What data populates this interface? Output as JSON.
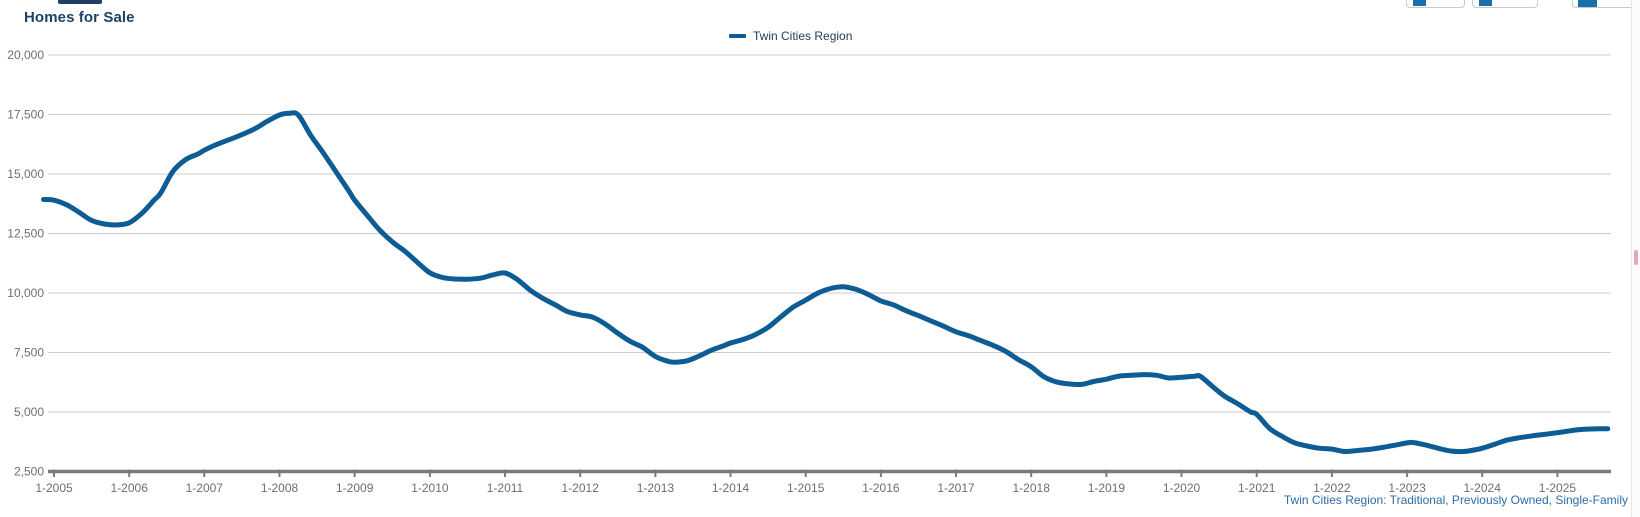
{
  "page": {
    "title": "Homes for Sale",
    "footer_note": "Twin Cities Region: Traditional, Previously Owned, Single-Family"
  },
  "legend": {
    "series_label": "Twin Cities Region"
  },
  "toolbar": {
    "buttons": [
      {
        "name": "toolbar-button-1",
        "icon": "chart-tool-icon"
      },
      {
        "name": "toolbar-button-2",
        "icon": "chart-tool-icon"
      },
      {
        "name": "toolbar-button-3",
        "icon": "chart-tool-icon-active"
      }
    ]
  },
  "colors": {
    "line": "#0d5c94",
    "title": "#1c4365",
    "axis_label": "#6e6e6e",
    "gridline": "#cccccc",
    "axis_line": "#7a7a7a",
    "footer": "#2e6da4"
  },
  "chart_data": {
    "type": "line",
    "title": "Homes for Sale",
    "xlabel": "",
    "ylabel": "",
    "grid": "horizontal",
    "legend_position": "top-center",
    "ylim": [
      2500,
      20000
    ],
    "y_ticks": [
      20000,
      17500,
      15000,
      12500,
      10000,
      7500,
      5000,
      2500
    ],
    "x_tick_labels": [
      "1-2005",
      "1-2006",
      "1-2007",
      "1-2008",
      "1-2009",
      "1-2010",
      "1-2011",
      "1-2012",
      "1-2013",
      "1-2014",
      "1-2015",
      "1-2016",
      "1-2017",
      "1-2018",
      "1-2019",
      "1-2020",
      "1-2021",
      "1-2022",
      "1-2023",
      "1-2024",
      "1-2025"
    ],
    "x_tick_years": [
      2005,
      2006,
      2007,
      2008,
      2009,
      2010,
      2011,
      2012,
      2013,
      2014,
      2015,
      2016,
      2017,
      2018,
      2019,
      2020,
      2021,
      2022,
      2023,
      2024,
      2025
    ],
    "series": [
      {
        "name": "Twin Cities Region",
        "color": "#0d5c94",
        "points": [
          [
            2004.86,
            13930
          ],
          [
            2005.0,
            13900
          ],
          [
            2005.17,
            13700
          ],
          [
            2005.33,
            13400
          ],
          [
            2005.5,
            13050
          ],
          [
            2005.67,
            12900
          ],
          [
            2005.83,
            12860
          ],
          [
            2006.0,
            12950
          ],
          [
            2006.17,
            13350
          ],
          [
            2006.33,
            13900
          ],
          [
            2006.42,
            14200
          ],
          [
            2006.58,
            15100
          ],
          [
            2006.75,
            15600
          ],
          [
            2006.92,
            15850
          ],
          [
            2007.0,
            16000
          ],
          [
            2007.17,
            16250
          ],
          [
            2007.42,
            16550
          ],
          [
            2007.67,
            16900
          ],
          [
            2007.83,
            17200
          ],
          [
            2008.0,
            17480
          ],
          [
            2008.13,
            17550
          ],
          [
            2008.25,
            17480
          ],
          [
            2008.42,
            16600
          ],
          [
            2008.58,
            15900
          ],
          [
            2008.75,
            15100
          ],
          [
            2008.92,
            14300
          ],
          [
            2009.0,
            13900
          ],
          [
            2009.17,
            13250
          ],
          [
            2009.33,
            12650
          ],
          [
            2009.5,
            12150
          ],
          [
            2009.67,
            11750
          ],
          [
            2009.83,
            11300
          ],
          [
            2010.0,
            10850
          ],
          [
            2010.17,
            10650
          ],
          [
            2010.33,
            10590
          ],
          [
            2010.5,
            10580
          ],
          [
            2010.67,
            10620
          ],
          [
            2010.83,
            10750
          ],
          [
            2011.0,
            10840
          ],
          [
            2011.17,
            10550
          ],
          [
            2011.33,
            10130
          ],
          [
            2011.5,
            9780
          ],
          [
            2011.67,
            9500
          ],
          [
            2011.83,
            9220
          ],
          [
            2012.0,
            9080
          ],
          [
            2012.17,
            8980
          ],
          [
            2012.33,
            8700
          ],
          [
            2012.5,
            8310
          ],
          [
            2012.67,
            7960
          ],
          [
            2012.83,
            7720
          ],
          [
            2013.0,
            7330
          ],
          [
            2013.17,
            7130
          ],
          [
            2013.25,
            7090
          ],
          [
            2013.42,
            7150
          ],
          [
            2013.58,
            7350
          ],
          [
            2013.75,
            7600
          ],
          [
            2013.92,
            7800
          ],
          [
            2014.0,
            7900
          ],
          [
            2014.17,
            8050
          ],
          [
            2014.33,
            8250
          ],
          [
            2014.5,
            8560
          ],
          [
            2014.67,
            9000
          ],
          [
            2014.83,
            9400
          ],
          [
            2015.0,
            9700
          ],
          [
            2015.17,
            10010
          ],
          [
            2015.33,
            10190
          ],
          [
            2015.5,
            10260
          ],
          [
            2015.67,
            10150
          ],
          [
            2015.83,
            9940
          ],
          [
            2016.0,
            9670
          ],
          [
            2016.17,
            9500
          ],
          [
            2016.33,
            9260
          ],
          [
            2016.5,
            9050
          ],
          [
            2016.67,
            8820
          ],
          [
            2016.83,
            8610
          ],
          [
            2017.0,
            8370
          ],
          [
            2017.17,
            8200
          ],
          [
            2017.33,
            8000
          ],
          [
            2017.5,
            7790
          ],
          [
            2017.67,
            7530
          ],
          [
            2017.83,
            7200
          ],
          [
            2018.0,
            6900
          ],
          [
            2018.17,
            6480
          ],
          [
            2018.33,
            6270
          ],
          [
            2018.5,
            6180
          ],
          [
            2018.67,
            6160
          ],
          [
            2018.83,
            6280
          ],
          [
            2019.0,
            6380
          ],
          [
            2019.17,
            6510
          ],
          [
            2019.33,
            6540
          ],
          [
            2019.5,
            6570
          ],
          [
            2019.67,
            6540
          ],
          [
            2019.83,
            6430
          ],
          [
            2020.0,
            6460
          ],
          [
            2020.17,
            6500
          ],
          [
            2020.25,
            6500
          ],
          [
            2020.42,
            6050
          ],
          [
            2020.58,
            5650
          ],
          [
            2020.75,
            5340
          ],
          [
            2020.92,
            5000
          ],
          [
            2021.0,
            4900
          ],
          [
            2021.17,
            4310
          ],
          [
            2021.33,
            3990
          ],
          [
            2021.5,
            3710
          ],
          [
            2021.67,
            3570
          ],
          [
            2021.83,
            3480
          ],
          [
            2022.0,
            3440
          ],
          [
            2022.17,
            3340
          ],
          [
            2022.33,
            3380
          ],
          [
            2022.5,
            3430
          ],
          [
            2022.67,
            3510
          ],
          [
            2022.83,
            3600
          ],
          [
            2023.0,
            3700
          ],
          [
            2023.08,
            3720
          ],
          [
            2023.25,
            3610
          ],
          [
            2023.42,
            3470
          ],
          [
            2023.58,
            3360
          ],
          [
            2023.75,
            3340
          ],
          [
            2023.92,
            3420
          ],
          [
            2024.0,
            3480
          ],
          [
            2024.17,
            3650
          ],
          [
            2024.33,
            3820
          ],
          [
            2024.5,
            3920
          ],
          [
            2024.67,
            4000
          ],
          [
            2024.83,
            4060
          ],
          [
            2025.0,
            4130
          ],
          [
            2025.17,
            4210
          ],
          [
            2025.33,
            4270
          ],
          [
            2025.5,
            4290
          ],
          [
            2025.67,
            4300
          ]
        ]
      }
    ]
  }
}
